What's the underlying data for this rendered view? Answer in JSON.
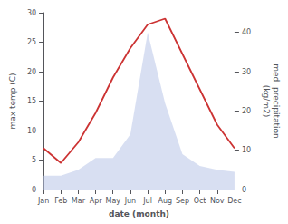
{
  "chart_data": {
    "type": "line",
    "xlabel": "date (month)",
    "ylabel": "max temp (C)",
    "y2label": "med. precipitation\n(kg/m2)",
    "categories": [
      "Jan",
      "Feb",
      "Mar",
      "Apr",
      "May",
      "Jun",
      "Jul",
      "Aug",
      "Sep",
      "Oct",
      "Nov",
      "Dec"
    ],
    "series": [
      {
        "type": "line",
        "color": "#cc3333",
        "values": [
          7,
          4.5,
          8,
          13,
          19,
          24,
          28,
          29,
          23,
          17,
          11,
          7
        ]
      },
      {
        "type": "area",
        "color": "#b8c4e8",
        "axis": "y2",
        "values": [
          3.5,
          3.5,
          5,
          8,
          8,
          14,
          40,
          22,
          9,
          6,
          5,
          4.5
        ]
      }
    ],
    "ylim": [
      0,
      30
    ],
    "yticks": [
      0,
      5,
      10,
      15,
      20,
      25,
      30
    ],
    "y2lim": [
      0,
      45
    ],
    "y2ticks": [
      0,
      10,
      20,
      30,
      40
    ],
    "grid": false
  }
}
